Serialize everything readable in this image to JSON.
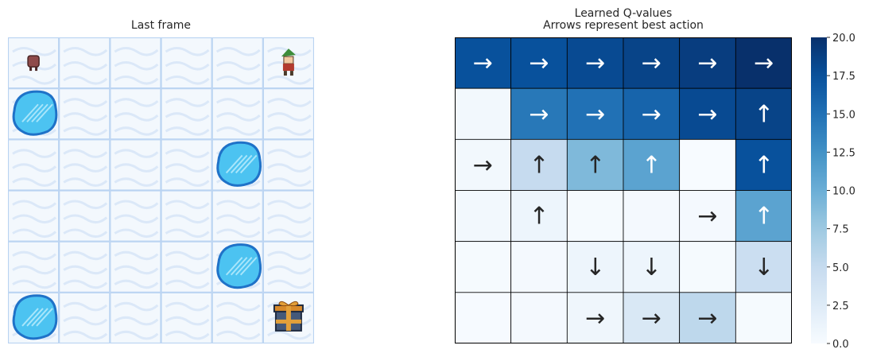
{
  "left_panel": {
    "title": "Last frame",
    "grid_size": 6,
    "tiles": [
      [
        "stool",
        "frozen",
        "frozen",
        "frozen",
        "frozen",
        "elf"
      ],
      [
        "hole",
        "frozen",
        "frozen",
        "frozen",
        "frozen",
        "frozen"
      ],
      [
        "frozen",
        "frozen",
        "frozen",
        "frozen",
        "hole",
        "frozen"
      ],
      [
        "frozen",
        "frozen",
        "frozen",
        "frozen",
        "frozen",
        "frozen"
      ],
      [
        "frozen",
        "frozen",
        "frozen",
        "frozen",
        "hole",
        "frozen"
      ],
      [
        "hole",
        "frozen",
        "frozen",
        "frozen",
        "frozen",
        "goal"
      ]
    ],
    "colors": {
      "ice": "#f3f8fd",
      "ice_line": "#b9d3f2",
      "hole": "#4cc3f1",
      "hole_edge": "#1f72c8"
    }
  },
  "chart_data": {
    "type": "heatmap",
    "title": "Learned Q-values",
    "subtitle": "Arrows represent best action",
    "rows": 6,
    "cols": 6,
    "values": [
      [
        17.5,
        17.5,
        18.0,
        18.5,
        19.0,
        20.0
      ],
      [
        0.5,
        14.5,
        15.0,
        16.0,
        18.0,
        18.5
      ],
      [
        0.5,
        5.0,
        9.0,
        11.0,
        0.0,
        17.5
      ],
      [
        0.5,
        1.0,
        0.2,
        0.3,
        0.3,
        11.0
      ],
      [
        0.2,
        0.3,
        1.0,
        1.0,
        0.2,
        4.5
      ],
      [
        0.1,
        0.3,
        0.8,
        3.0,
        5.5,
        0.2
      ]
    ],
    "arrows": [
      [
        "→",
        "→",
        "→",
        "→",
        "→",
        "→"
      ],
      [
        "",
        "→",
        "→",
        "→",
        "→",
        "↑"
      ],
      [
        "→",
        "↑",
        "↑",
        "↑",
        "",
        "↑"
      ],
      [
        "",
        "↑",
        "",
        "",
        "→",
        "↑"
      ],
      [
        "",
        "",
        "↓",
        "↓",
        "",
        "↓"
      ],
      [
        "",
        "",
        "→",
        "→",
        "→",
        ""
      ]
    ],
    "colorbar": {
      "min": 0.0,
      "max": 20.0,
      "ticks": [
        "0.0",
        "2.5",
        "5.0",
        "7.5",
        "10.0",
        "12.5",
        "15.0",
        "17.5",
        "20.0"
      ],
      "colormap": "Blues"
    }
  }
}
